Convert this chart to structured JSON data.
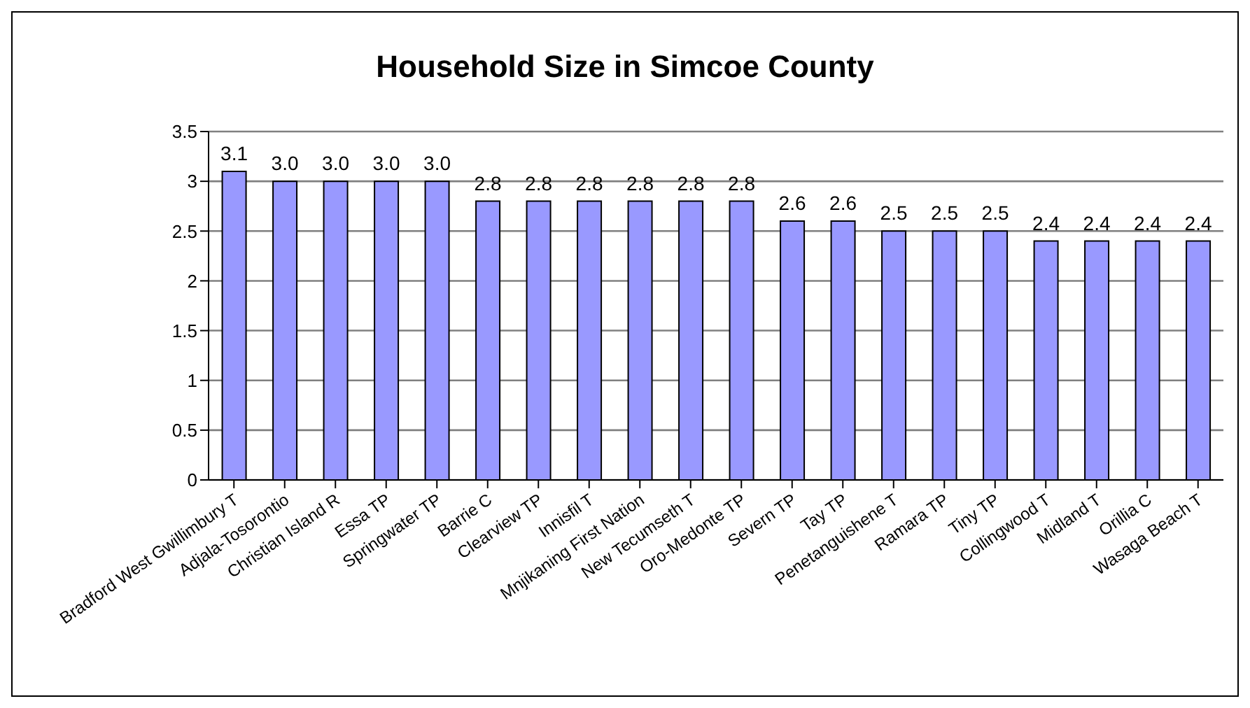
{
  "chart_data": {
    "type": "bar",
    "title": "Household Size in Simcoe County",
    "categories": [
      "Bradford West Gwillimbury T",
      "Adjala-Tosorontio",
      "Christian Island R",
      "Essa TP",
      "Springwater TP",
      "Barrie C",
      "Clearview TP",
      "Innisfil T",
      "Mnjikaning First Nation",
      "New Tecumseth T",
      "Oro-Medonte TP",
      "Severn TP",
      "Tay TP",
      "Penetanguishene T",
      "Ramara TP",
      "Tiny TP",
      "Collingwood T",
      "Midland T",
      "Orillia C",
      "Wasaga Beach T"
    ],
    "values": [
      3.1,
      3,
      3,
      3,
      3,
      2.8,
      2.8,
      2.8,
      2.8,
      2.8,
      2.8,
      2.6,
      2.6,
      2.5,
      2.5,
      2.5,
      2.4,
      2.4,
      2.4,
      2.4
    ],
    "value_labels": [
      "3.1",
      "3.0",
      "3.0",
      "3.0",
      "3.0",
      "2.8",
      "2.8",
      "2.8",
      "2.8",
      "2.8",
      "2.8",
      "2.6",
      "2.6",
      "2.5",
      "2.5",
      "2.5",
      "2.4",
      "2.4",
      "2.4",
      "2.4"
    ],
    "color": "#9999ff",
    "ylim": [
      0,
      3.5
    ],
    "yticks": [
      0,
      0.5,
      1,
      1.5,
      2,
      2.5,
      3,
      3.5
    ],
    "grid": "y"
  }
}
